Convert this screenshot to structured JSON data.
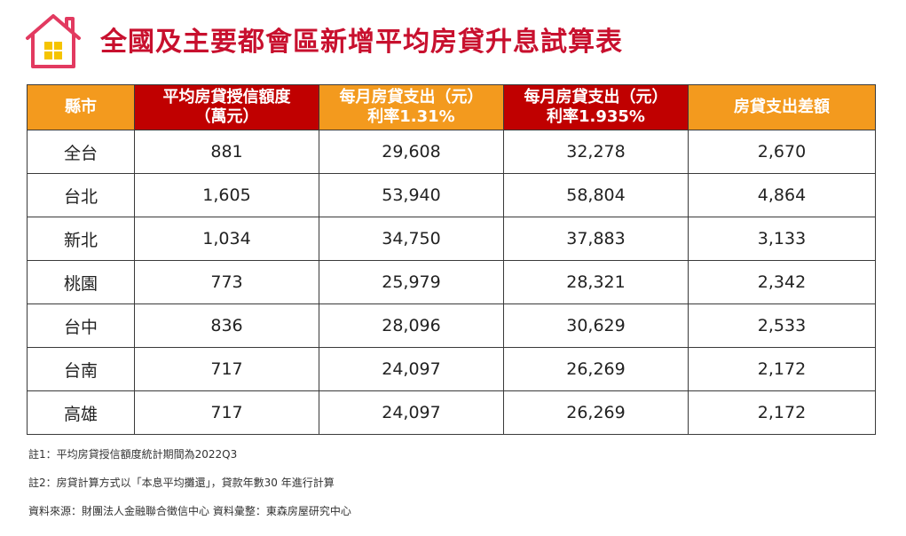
{
  "header": {
    "title": "全國及主要都會區新增平均房貸升息試算表",
    "logo_icon": "house-icon",
    "colors": {
      "title": "#c8102e",
      "orange": "#f39a1e",
      "red": "#c00000",
      "logo_outline": "#e23a60",
      "logo_window": "#f5c400"
    }
  },
  "table": {
    "headers": [
      {
        "line1": "縣市",
        "line2": ""
      },
      {
        "line1": "平均房貸授信額度",
        "line2": "（萬元）"
      },
      {
        "line1": "每月房貸支出（元）",
        "line2": "利率1.31%"
      },
      {
        "line1": "每月房貸支出（元）",
        "line2": "利率1.935%"
      },
      {
        "line1": "房貸支出差額",
        "line2": ""
      }
    ],
    "rows": [
      [
        "全台",
        "881",
        "29,608",
        "32,278",
        "2,670"
      ],
      [
        "台北",
        "1,605",
        "53,940",
        "58,804",
        "4,864"
      ],
      [
        "新北",
        "1,034",
        "34,750",
        "37,883",
        "3,133"
      ],
      [
        "桃園",
        "773",
        "25,979",
        "28,321",
        "2,342"
      ],
      [
        "台中",
        "836",
        "28,096",
        "30,629",
        "2,533"
      ],
      [
        "台南",
        "717",
        "24,097",
        "26,269",
        "2,172"
      ],
      [
        "高雄",
        "717",
        "24,097",
        "26,269",
        "2,172"
      ]
    ]
  },
  "notes": [
    "註1：平均房貸授信額度統計期間為2022Q3",
    "註2：房貸計算方式以「本息平均攤還」，貸款年數30 年進行計算",
    "資料來源：財團法人金融聯合徵信中心  資料彙整：東森房屋研究中心"
  ]
}
